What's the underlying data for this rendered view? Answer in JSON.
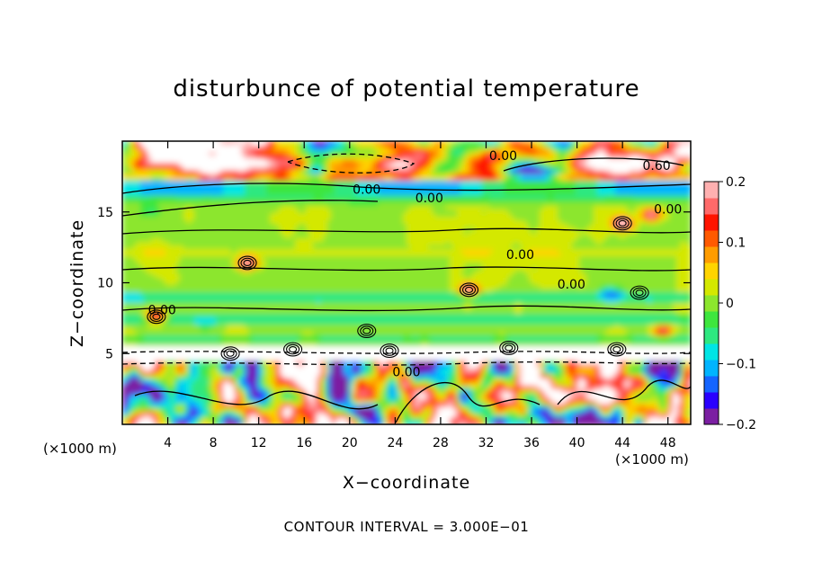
{
  "chart_data": {
    "type": "heatmap",
    "title": "disturbunce of potential temperature",
    "xlabel": "X−coordinate",
    "ylabel": "Z−coordinate",
    "x_unit_left": "(×1000 m)",
    "x_unit_right": "(×1000 m)",
    "xlim": [
      0,
      50
    ],
    "ylim": [
      0,
      20
    ],
    "x_ticks": [
      4,
      8,
      12,
      16,
      20,
      24,
      28,
      32,
      36,
      40,
      44,
      48
    ],
    "y_ticks": [
      5,
      10,
      15
    ],
    "colorbar": {
      "range": [
        -0.2,
        0.2
      ],
      "ticks": [
        0.2,
        0.1,
        0,
        -0.1,
        -0.2
      ],
      "tick_labels": [
        "0.2",
        "0.1",
        "0",
        "−0.1",
        "−0.2"
      ],
      "colors": [
        "#7b1fa2",
        "#2a00ff",
        "#1565ff",
        "#00b4ff",
        "#00e5e5",
        "#2ee880",
        "#3ee63e",
        "#8ce62e",
        "#d4e800",
        "#ffd400",
        "#ff9c00",
        "#ff5a00",
        "#ff1400",
        "#ff6a6a",
        "#ffb0b0"
      ]
    },
    "contour_interval": "CONTOUR INTERVAL = 3.000E−01",
    "contour_labels": [
      {
        "text": "0.00",
        "x": 21.5,
        "z": 16.6
      },
      {
        "text": "0.00",
        "x": 27.0,
        "z": 16.0
      },
      {
        "text": "0.00",
        "x": 33.5,
        "z": 19.0
      },
      {
        "text": "0.60",
        "x": 47.0,
        "z": 18.3
      },
      {
        "text": "0.00",
        "x": 48.0,
        "z": 15.2
      },
      {
        "text": "0.00",
        "x": 35.0,
        "z": 12.0
      },
      {
        "text": "0.00",
        "x": 39.5,
        "z": 9.9
      },
      {
        "text": "0.00",
        "x": 3.5,
        "z": 8.1
      },
      {
        "text": "0.00",
        "x": 25.0,
        "z": 3.7
      }
    ]
  }
}
